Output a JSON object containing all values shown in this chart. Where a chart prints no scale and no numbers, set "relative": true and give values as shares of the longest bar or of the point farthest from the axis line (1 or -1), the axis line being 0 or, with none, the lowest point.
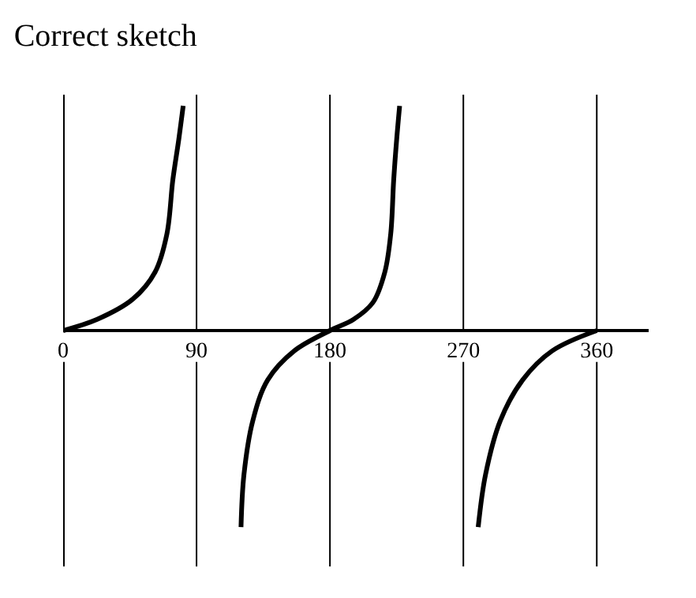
{
  "chart_data": {
    "type": "line",
    "title": "Correct sketch",
    "relative": true,
    "x": [
      0,
      23,
      47,
      62,
      70,
      74,
      78,
      81,
      90,
      120,
      122,
      128,
      138,
      156,
      180,
      196,
      209,
      217,
      221,
      223,
      225,
      227,
      250,
      280,
      285,
      295,
      310,
      330,
      360
    ],
    "series": [
      {
        "color": "#000000",
        "values": [
          0,
          0.05,
          0.14,
          0.26,
          0.43,
          0.67,
          0.85,
          1.0,
          null,
          -0.875,
          -0.64,
          -0.4,
          -0.22,
          -0.09,
          0,
          0.05,
          0.125,
          0.26,
          0.43,
          0.67,
          0.85,
          1.0,
          null,
          -0.875,
          -0.64,
          -0.4,
          -0.22,
          -0.09,
          0
        ]
      }
    ],
    "xlim": [
      0,
      395
    ],
    "xticks": [
      0,
      90,
      180,
      270,
      360
    ],
    "grid": "x",
    "marker": "none",
    "line_style": "solid"
  }
}
